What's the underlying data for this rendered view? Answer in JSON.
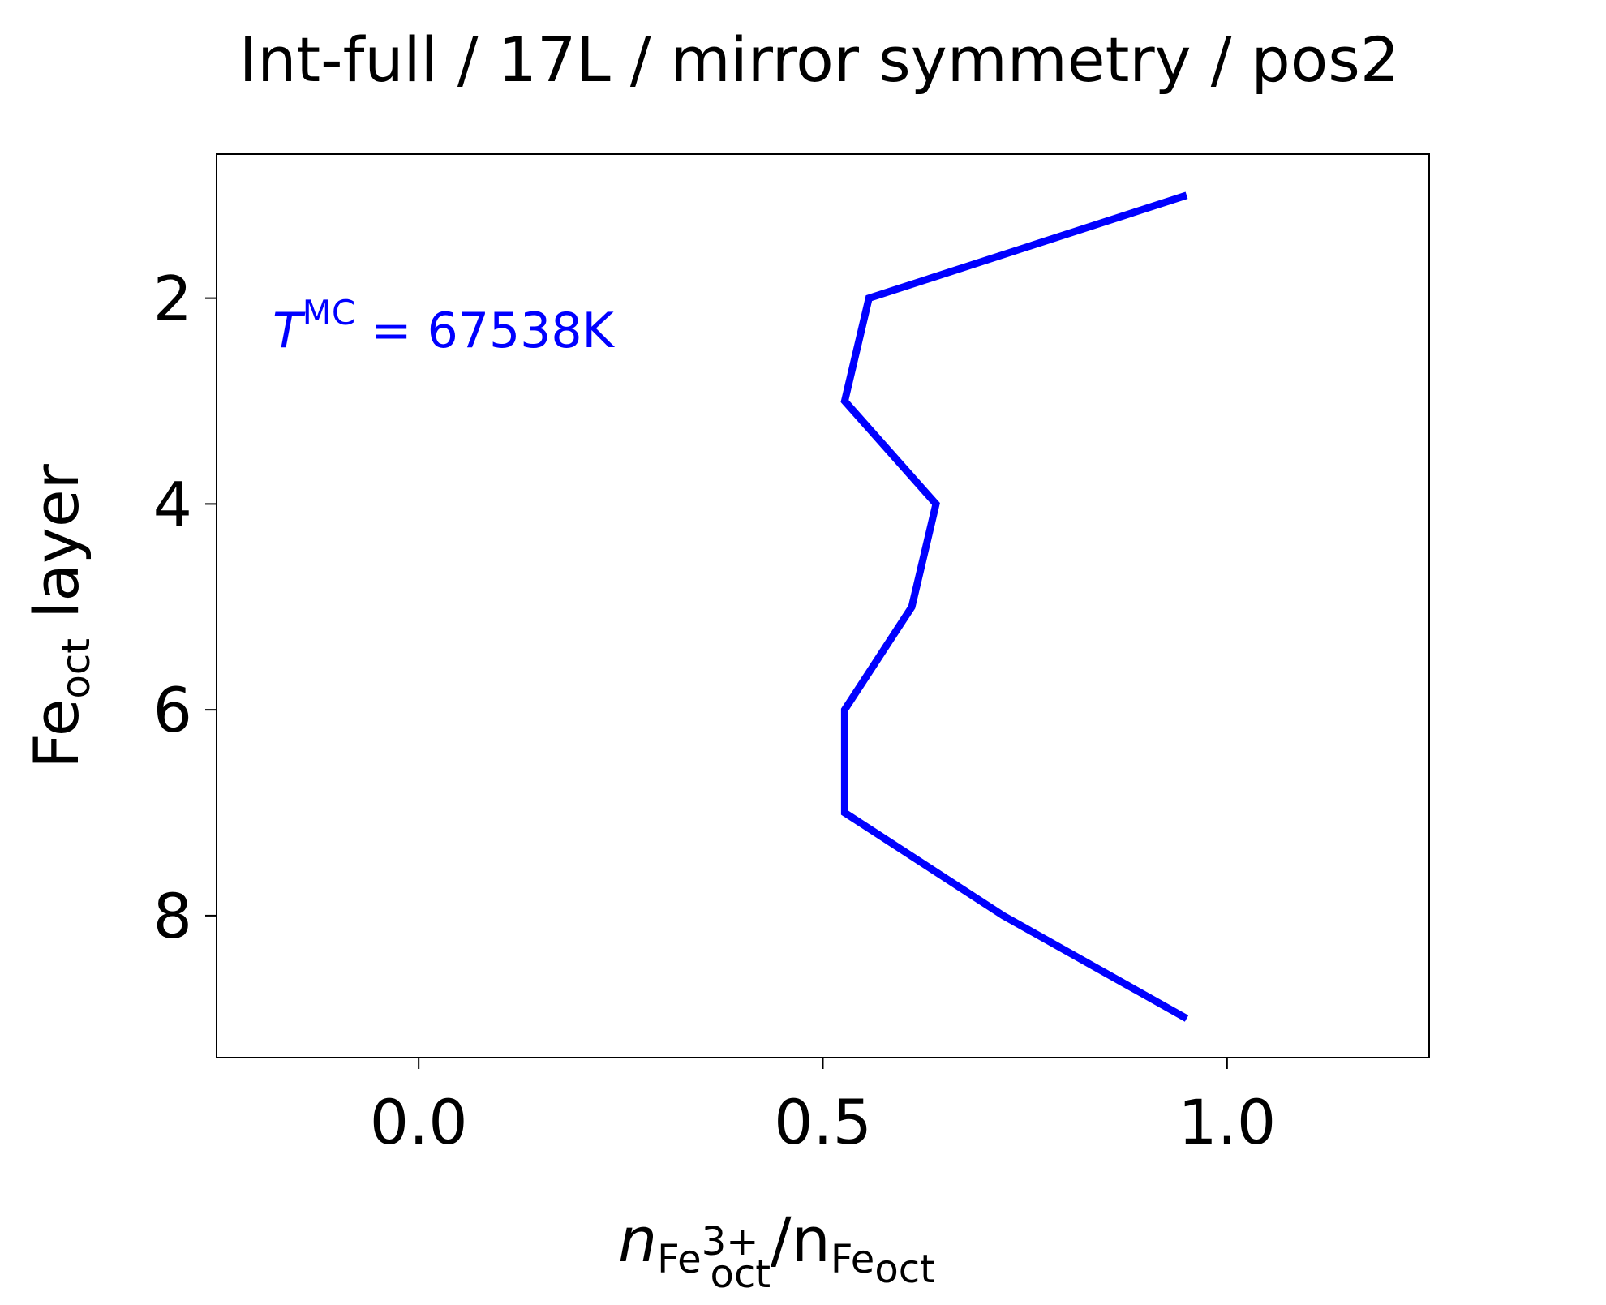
{
  "chart_data": {
    "type": "line",
    "title": "Int-full / 17L / mirror symmetry / pos2",
    "xlabel": {
      "main": "n",
      "sub_element": "Fe",
      "sup_charge": "3+",
      "sub_site": "oct",
      "slash": "/n",
      "sub_element_2": "Fe",
      "sub_site_2": "oct"
    },
    "ylabel": {
      "main": "Fe",
      "sub": "oct",
      "rest": " layer"
    },
    "xlim": [
      -0.25,
      1.25
    ],
    "ylim": [
      9.38,
      0.6
    ],
    "y_inverted": true,
    "x_ticks": [
      0.0,
      0.5,
      1.0
    ],
    "x_tick_labels": [
      "0.0",
      "0.5",
      "1.0"
    ],
    "y_ticks": [
      2,
      4,
      6,
      8
    ],
    "y_tick_labels": [
      "2",
      "4",
      "6",
      "8"
    ],
    "grid": false,
    "series": [
      {
        "color": "#0000ff",
        "x": [
          0.95,
          0.557,
          0.527,
          0.64,
          0.61,
          0.527,
          0.527,
          0.723,
          0.95
        ],
        "y": [
          1,
          2,
          3,
          4,
          5,
          6,
          7,
          8,
          9
        ]
      }
    ],
    "annotation": {
      "symbol": "T",
      "superscript": "MC",
      "value_text": " = 67538K",
      "color": "#0000ff"
    }
  }
}
